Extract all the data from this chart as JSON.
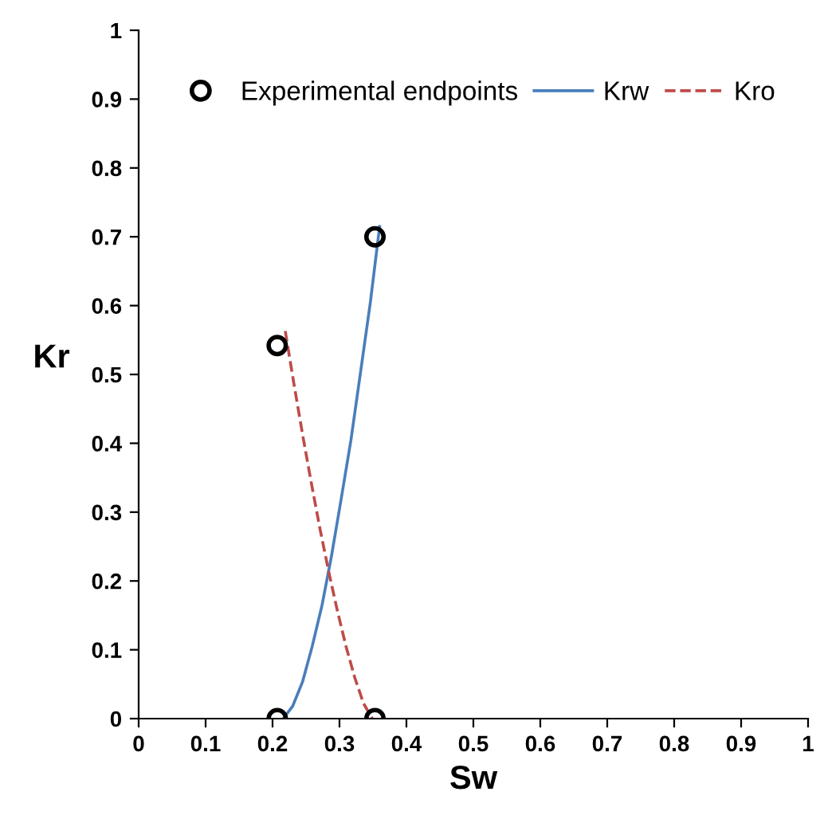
{
  "chart_data": {
    "type": "line",
    "xlabel": "Sw",
    "ylabel": "Kr",
    "xlim": [
      0,
      1
    ],
    "ylim": [
      0,
      1
    ],
    "xticks": [
      0,
      0.1,
      0.2,
      0.3,
      0.4,
      0.5,
      0.6,
      0.7,
      0.8,
      0.9,
      1
    ],
    "yticks": [
      0,
      0.1,
      0.2,
      0.3,
      0.4,
      0.5,
      0.6,
      0.7,
      0.8,
      0.9,
      1
    ],
    "grid": false,
    "legend": "top",
    "series": [
      {
        "name": "Experimental endpoints",
        "type": "scatter",
        "marker": "circle",
        "color": "#000000",
        "x": [
          0.207,
          0.353,
          0.207,
          0.353
        ],
        "values": [
          0,
          0,
          0.542,
          0.7
        ]
      },
      {
        "name": "Krw",
        "line_style": "solid",
        "color": "#4a7ebb",
        "x": [
          0.216,
          0.23,
          0.245,
          0.259,
          0.274,
          0.288,
          0.302,
          0.317,
          0.331,
          0.346,
          0.36
        ],
        "values": [
          0,
          0.018,
          0.054,
          0.104,
          0.165,
          0.236,
          0.316,
          0.404,
          0.5,
          0.604,
          0.715
        ]
      },
      {
        "name": "Kro",
        "line_style": "dashed",
        "color": "#be4b48",
        "x": [
          0.219,
          0.232,
          0.245,
          0.258,
          0.271,
          0.284,
          0.297,
          0.31,
          0.323,
          0.336,
          0.349
        ],
        "values": [
          0.563,
          0.486,
          0.412,
          0.342,
          0.275,
          0.213,
          0.156,
          0.104,
          0.059,
          0.022,
          0
        ]
      }
    ]
  }
}
